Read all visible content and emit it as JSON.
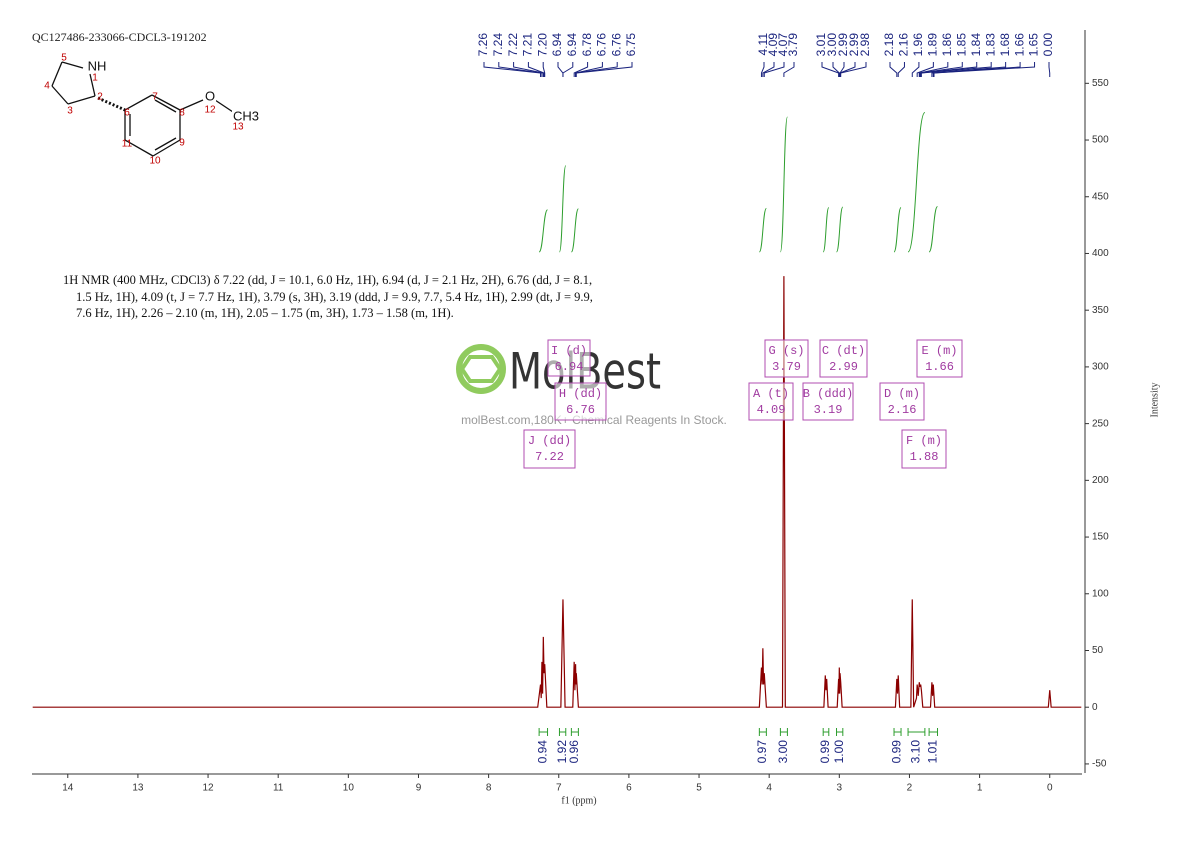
{
  "chart_data": {
    "type": "line",
    "title": "QC127486-233066-CDCL3-191202",
    "x_label": "f1 (ppm)",
    "y_label": "Intensity",
    "description": [
      "1H NMR (400 MHz, CDCl3) δ 7.22 (dd, J = 10.1, 6.0 Hz, 1H), 6.94 (d, J = 2.1 Hz, 2H), 6.76 (dd, J = 8.1,",
      "1.5 Hz, 1H), 4.09 (t, J = 7.7 Hz, 1H), 3.79 (s, 3H), 3.19 (ddd, J = 9.9, 7.7, 5.4 Hz, 1H), 2.99 (dt, J = 9.9,",
      "7.6 Hz, 1H), 2.26 – 2.10 (m, 1H), 2.05 – 1.75 (m, 3H), 1.73 – 1.58 (m, 1H)."
    ],
    "logo": "MolBest",
    "watermark": "molBest.com,180K+ Chemical Reagents In Stock.",
    "color": "#8b0000",
    "xlim": [
      14.51,
      -0.46
    ],
    "xticks": [
      14,
      13,
      12,
      11,
      10,
      9,
      8,
      7,
      6,
      5,
      4,
      3,
      2,
      1,
      0
    ],
    "ylim": [
      -58,
      597
    ],
    "yticks": [
      -50,
      0,
      50,
      100,
      150,
      200,
      250,
      300,
      350,
      400,
      450,
      500,
      550
    ],
    "x": [
      14.5,
      7.3,
      7.26,
      7.25,
      7.24,
      7.23,
      7.22,
      7.21,
      7.2,
      7.17,
      6.97,
      6.94,
      6.91,
      6.8,
      6.78,
      6.77,
      6.76,
      6.755,
      6.75,
      6.72,
      4.14,
      4.11,
      4.1,
      4.09,
      4.08,
      4.07,
      4.04,
      3.81,
      3.79,
      3.77,
      3.22,
      3.2,
      3.19,
      3.18,
      3.16,
      3.03,
      3.01,
      3.005,
      3.0,
      2.995,
      2.99,
      2.98,
      2.96,
      2.2,
      2.18,
      2.17,
      2.16,
      2.14,
      1.98,
      1.96,
      1.94,
      1.9,
      1.89,
      1.875,
      1.86,
      1.85,
      1.84,
      1.83,
      1.81,
      1.7,
      1.68,
      1.67,
      1.66,
      1.64,
      0.02,
      0,
      -0.02,
      -0.45
    ],
    "values": [
      0,
      0,
      20,
      8,
      40,
      12,
      62,
      30,
      38,
      0,
      0,
      95,
      0,
      0,
      40,
      15,
      38,
      20,
      30,
      0,
      0,
      35,
      20,
      52,
      20,
      30,
      0,
      0,
      380,
      0,
      0,
      28,
      15,
      25,
      0,
      0,
      25,
      12,
      35,
      12,
      30,
      22,
      0,
      0,
      25,
      12,
      28,
      0,
      0,
      95,
      0,
      8,
      20,
      10,
      22,
      18,
      20,
      15,
      0,
      0,
      22,
      10,
      20,
      0,
      0,
      15,
      0,
      0
    ],
    "peak_labels": [
      {
        "value": 7.26,
        "label": "7.26"
      },
      {
        "value": 7.24,
        "label": "7.24"
      },
      {
        "value": 7.22,
        "label": "7.22"
      },
      {
        "value": 7.21,
        "label": "7.21"
      },
      {
        "value": 7.2,
        "label": "7.20"
      },
      {
        "value": 6.94,
        "label": "6.94"
      },
      {
        "value": 6.94,
        "label": "6.94"
      },
      {
        "value": 6.78,
        "label": "6.78"
      },
      {
        "value": 6.76,
        "label": "6.76"
      },
      {
        "value": 6.76,
        "label": "6.76"
      },
      {
        "value": 6.75,
        "label": "6.75"
      },
      {
        "value": 4.11,
        "label": "4.11"
      },
      {
        "value": 4.09,
        "label": "4.09"
      },
      {
        "value": 4.07,
        "label": "4.07"
      },
      {
        "value": 3.79,
        "label": "3.79"
      },
      {
        "value": 3.01,
        "label": "3.01"
      },
      {
        "value": 3.0,
        "label": "3.00"
      },
      {
        "value": 2.99,
        "label": "2.99"
      },
      {
        "value": 2.99,
        "label": "2.99"
      },
      {
        "value": 2.98,
        "label": "2.98"
      },
      {
        "value": 2.18,
        "label": "2.18"
      },
      {
        "value": 2.16,
        "label": "2.16"
      },
      {
        "value": 1.96,
        "label": "1.96"
      },
      {
        "value": 1.89,
        "label": "1.89"
      },
      {
        "value": 1.86,
        "label": "1.86"
      },
      {
        "value": 1.85,
        "label": "1.85"
      },
      {
        "value": 1.84,
        "label": "1.84"
      },
      {
        "value": 1.83,
        "label": "1.83"
      },
      {
        "value": 1.68,
        "label": "1.68"
      },
      {
        "value": 1.66,
        "label": "1.66"
      },
      {
        "value": 1.65,
        "label": "1.65"
      },
      {
        "value": 0.0,
        "label": "0.00"
      }
    ],
    "integrals": [
      {
        "value": 0.94,
        "label": "0.94",
        "from": 7.28,
        "to": 7.16
      },
      {
        "value": 1.92,
        "label": "1.92",
        "from": 6.99,
        "to": 6.9
      },
      {
        "value": 0.96,
        "label": "0.96",
        "from": 6.82,
        "to": 6.72
      },
      {
        "value": 0.97,
        "label": "0.97",
        "from": 4.14,
        "to": 4.04
      },
      {
        "value": 3.0,
        "label": "3.00",
        "from": 3.84,
        "to": 3.74
      },
      {
        "value": 0.99,
        "label": "0.99",
        "from": 3.23,
        "to": 3.15
      },
      {
        "value": 1.0,
        "label": "1.00",
        "from": 3.04,
        "to": 2.95
      },
      {
        "value": 0.99,
        "label": "0.99",
        "from": 2.22,
        "to": 2.12
      },
      {
        "value": 3.1,
        "label": "3.10",
        "from": 2.02,
        "to": 1.78
      },
      {
        "value": 1.01,
        "label": "1.01",
        "from": 1.72,
        "to": 1.6
      }
    ],
    "multiplets": [
      {
        "label": "I (d)",
        "shift": "6.94"
      },
      {
        "label": "H (dd)",
        "shift": "6.76"
      },
      {
        "label": "J (dd)",
        "shift": "7.22"
      },
      {
        "label": "G (s)",
        "shift": "3.79"
      },
      {
        "label": "A (t)",
        "shift": "4.09"
      },
      {
        "label": "C (dt)",
        "shift": "2.99"
      },
      {
        "label": "B (ddd)",
        "shift": "3.19"
      },
      {
        "label": "D (m)",
        "shift": "2.16"
      },
      {
        "label": "E (m)",
        "shift": "1.66"
      },
      {
        "label": "F (m)",
        "shift": "1.88"
      }
    ],
    "molecule_labels": [
      "5",
      "NH",
      "1",
      "4",
      "2",
      "3",
      "7",
      "6",
      "8",
      "O",
      "12",
      "CH3",
      "13",
      "11",
      "9",
      "10"
    ]
  }
}
